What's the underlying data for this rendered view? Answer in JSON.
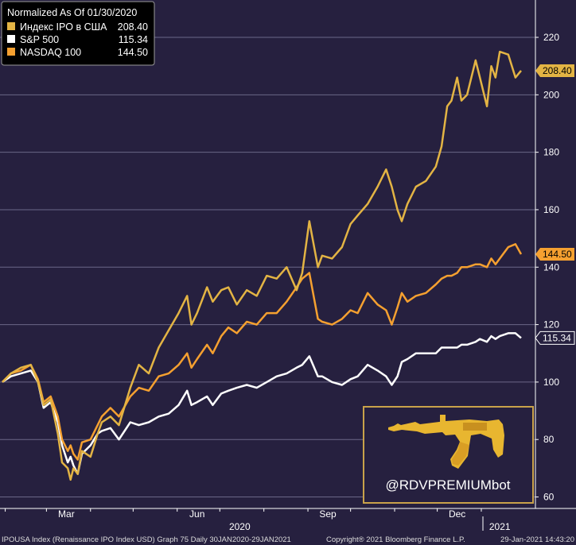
{
  "chart_data": {
    "type": "line",
    "title": "Normalized As Of 01/30/2020",
    "xlabel": "",
    "ylabel": "",
    "ylim": [
      56,
      233
    ],
    "yticks": [
      60,
      80,
      100,
      120,
      140,
      160,
      180,
      200,
      220
    ],
    "grid": true,
    "legend_position": "top-left",
    "x_month_labels": [
      "Mar",
      "Jun",
      "Sep",
      "Dec"
    ],
    "x_year_labels": [
      "2020",
      "2021"
    ],
    "x_range": [
      "2020-01-30",
      "2021-01-29"
    ],
    "series": [
      {
        "name": "Индекс IPO в США",
        "last_value": "208.40",
        "color": "#e3b444",
        "points": [
          [
            "2020-01-30",
            100
          ],
          [
            "2020-02-05",
            103
          ],
          [
            "2020-02-12",
            105
          ],
          [
            "2020-02-19",
            106
          ],
          [
            "2020-02-24",
            100
          ],
          [
            "2020-02-28",
            92
          ],
          [
            "2020-03-04",
            94
          ],
          [
            "2020-03-09",
            82
          ],
          [
            "2020-03-12",
            72
          ],
          [
            "2020-03-16",
            70
          ],
          [
            "2020-03-18",
            66
          ],
          [
            "2020-03-20",
            70
          ],
          [
            "2020-03-23",
            68
          ],
          [
            "2020-03-26",
            76
          ],
          [
            "2020-04-01",
            74
          ],
          [
            "2020-04-06",
            82
          ],
          [
            "2020-04-09",
            86
          ],
          [
            "2020-04-15",
            88
          ],
          [
            "2020-04-21",
            85
          ],
          [
            "2020-04-29",
            98
          ],
          [
            "2020-05-05",
            106
          ],
          [
            "2020-05-12",
            103
          ],
          [
            "2020-05-19",
            112
          ],
          [
            "2020-05-26",
            118
          ],
          [
            "2020-06-02",
            124
          ],
          [
            "2020-06-08",
            130
          ],
          [
            "2020-06-11",
            120
          ],
          [
            "2020-06-15",
            124
          ],
          [
            "2020-06-22",
            133
          ],
          [
            "2020-06-26",
            128
          ],
          [
            "2020-07-02",
            132
          ],
          [
            "2020-07-07",
            133
          ],
          [
            "2020-07-13",
            127
          ],
          [
            "2020-07-20",
            132
          ],
          [
            "2020-07-27",
            130
          ],
          [
            "2020-08-03",
            137
          ],
          [
            "2020-08-10",
            136
          ],
          [
            "2020-08-17",
            140
          ],
          [
            "2020-08-24",
            132
          ],
          [
            "2020-08-28",
            138
          ],
          [
            "2020-09-02",
            156
          ],
          [
            "2020-09-08",
            140
          ],
          [
            "2020-09-11",
            144
          ],
          [
            "2020-09-18",
            143
          ],
          [
            "2020-09-25",
            147
          ],
          [
            "2020-10-01",
            155
          ],
          [
            "2020-10-06",
            158
          ],
          [
            "2020-10-13",
            162
          ],
          [
            "2020-10-20",
            168
          ],
          [
            "2020-10-26",
            174
          ],
          [
            "2020-10-30",
            168
          ],
          [
            "2020-11-03",
            160
          ],
          [
            "2020-11-06",
            156
          ],
          [
            "2020-11-10",
            162
          ],
          [
            "2020-11-16",
            168
          ],
          [
            "2020-11-23",
            170
          ],
          [
            "2020-11-30",
            175
          ],
          [
            "2020-12-04",
            182
          ],
          [
            "2020-12-08",
            196
          ],
          [
            "2020-12-11",
            198
          ],
          [
            "2020-12-15",
            206
          ],
          [
            "2020-12-18",
            198
          ],
          [
            "2020-12-22",
            200
          ],
          [
            "2020-12-28",
            212
          ],
          [
            "2020-12-31",
            206
          ],
          [
            "2021-01-05",
            196
          ],
          [
            "2021-01-08",
            210
          ],
          [
            "2021-01-11",
            206
          ],
          [
            "2021-01-14",
            215
          ],
          [
            "2021-01-20",
            214
          ],
          [
            "2021-01-25",
            206
          ],
          [
            "2021-01-29",
            208.4
          ]
        ]
      },
      {
        "name": "S&P 500",
        "last_value": "115.34",
        "color": "#ffffff",
        "points": [
          [
            "2020-01-30",
            100
          ],
          [
            "2020-02-05",
            102
          ],
          [
            "2020-02-12",
            103
          ],
          [
            "2020-02-19",
            104
          ],
          [
            "2020-02-24",
            100
          ],
          [
            "2020-02-28",
            91
          ],
          [
            "2020-03-04",
            93
          ],
          [
            "2020-03-09",
            86
          ],
          [
            "2020-03-12",
            78
          ],
          [
            "2020-03-16",
            72
          ],
          [
            "2020-03-18",
            74
          ],
          [
            "2020-03-20",
            71
          ],
          [
            "2020-03-23",
            68
          ],
          [
            "2020-03-26",
            75
          ],
          [
            "2020-04-01",
            78
          ],
          [
            "2020-04-06",
            82
          ],
          [
            "2020-04-09",
            83
          ],
          [
            "2020-04-15",
            84
          ],
          [
            "2020-04-21",
            80
          ],
          [
            "2020-04-29",
            86
          ],
          [
            "2020-05-05",
            85
          ],
          [
            "2020-05-12",
            86
          ],
          [
            "2020-05-19",
            88
          ],
          [
            "2020-05-26",
            89
          ],
          [
            "2020-06-02",
            92
          ],
          [
            "2020-06-08",
            97
          ],
          [
            "2020-06-11",
            92
          ],
          [
            "2020-06-15",
            93
          ],
          [
            "2020-06-22",
            95
          ],
          [
            "2020-06-26",
            92
          ],
          [
            "2020-07-02",
            96
          ],
          [
            "2020-07-07",
            97
          ],
          [
            "2020-07-13",
            98
          ],
          [
            "2020-07-20",
            99
          ],
          [
            "2020-07-27",
            98
          ],
          [
            "2020-08-03",
            100
          ],
          [
            "2020-08-10",
            102
          ],
          [
            "2020-08-17",
            103
          ],
          [
            "2020-08-24",
            105
          ],
          [
            "2020-08-28",
            106
          ],
          [
            "2020-09-02",
            109
          ],
          [
            "2020-09-08",
            102
          ],
          [
            "2020-09-11",
            102
          ],
          [
            "2020-09-18",
            100
          ],
          [
            "2020-09-25",
            99
          ],
          [
            "2020-10-01",
            101
          ],
          [
            "2020-10-06",
            102
          ],
          [
            "2020-10-13",
            106
          ],
          [
            "2020-10-20",
            104
          ],
          [
            "2020-10-26",
            102
          ],
          [
            "2020-10-30",
            99
          ],
          [
            "2020-11-03",
            102
          ],
          [
            "2020-11-06",
            107
          ],
          [
            "2020-11-10",
            108
          ],
          [
            "2020-11-16",
            110
          ],
          [
            "2020-11-23",
            110
          ],
          [
            "2020-11-30",
            110
          ],
          [
            "2020-12-04",
            112
          ],
          [
            "2020-12-08",
            112
          ],
          [
            "2020-12-11",
            112
          ],
          [
            "2020-12-15",
            112
          ],
          [
            "2020-12-18",
            113
          ],
          [
            "2020-12-22",
            113
          ],
          [
            "2020-12-28",
            114
          ],
          [
            "2020-12-31",
            115
          ],
          [
            "2021-01-05",
            114
          ],
          [
            "2021-01-08",
            116
          ],
          [
            "2021-01-11",
            115
          ],
          [
            "2021-01-14",
            116
          ],
          [
            "2021-01-20",
            117
          ],
          [
            "2021-01-25",
            117
          ],
          [
            "2021-01-29",
            115.34
          ]
        ]
      },
      {
        "name": "NASDAQ 100",
        "last_value": "144.50",
        "color": "#f5a030",
        "points": [
          [
            "2020-01-30",
            100
          ],
          [
            "2020-02-05",
            103
          ],
          [
            "2020-02-12",
            104
          ],
          [
            "2020-02-19",
            106
          ],
          [
            "2020-02-24",
            101
          ],
          [
            "2020-02-28",
            93
          ],
          [
            "2020-03-04",
            95
          ],
          [
            "2020-03-09",
            88
          ],
          [
            "2020-03-12",
            80
          ],
          [
            "2020-03-16",
            76
          ],
          [
            "2020-03-18",
            78
          ],
          [
            "2020-03-20",
            75
          ],
          [
            "2020-03-23",
            73
          ],
          [
            "2020-03-26",
            79
          ],
          [
            "2020-04-01",
            80
          ],
          [
            "2020-04-06",
            85
          ],
          [
            "2020-04-09",
            88
          ],
          [
            "2020-04-15",
            91
          ],
          [
            "2020-04-21",
            88
          ],
          [
            "2020-04-29",
            95
          ],
          [
            "2020-05-05",
            98
          ],
          [
            "2020-05-12",
            97
          ],
          [
            "2020-05-19",
            102
          ],
          [
            "2020-05-26",
            103
          ],
          [
            "2020-06-02",
            106
          ],
          [
            "2020-06-08",
            110
          ],
          [
            "2020-06-11",
            105
          ],
          [
            "2020-06-15",
            108
          ],
          [
            "2020-06-22",
            113
          ],
          [
            "2020-06-26",
            110
          ],
          [
            "2020-07-02",
            116
          ],
          [
            "2020-07-07",
            119
          ],
          [
            "2020-07-13",
            117
          ],
          [
            "2020-07-20",
            121
          ],
          [
            "2020-07-27",
            120
          ],
          [
            "2020-08-03",
            124
          ],
          [
            "2020-08-10",
            124
          ],
          [
            "2020-08-17",
            128
          ],
          [
            "2020-08-24",
            133
          ],
          [
            "2020-08-28",
            136
          ],
          [
            "2020-09-02",
            138
          ],
          [
            "2020-09-08",
            122
          ],
          [
            "2020-09-11",
            121
          ],
          [
            "2020-09-18",
            120
          ],
          [
            "2020-09-25",
            122
          ],
          [
            "2020-10-01",
            125
          ],
          [
            "2020-10-06",
            124
          ],
          [
            "2020-10-13",
            131
          ],
          [
            "2020-10-20",
            127
          ],
          [
            "2020-10-26",
            125
          ],
          [
            "2020-10-30",
            120
          ],
          [
            "2020-11-03",
            126
          ],
          [
            "2020-11-06",
            131
          ],
          [
            "2020-11-10",
            128
          ],
          [
            "2020-11-16",
            130
          ],
          [
            "2020-11-23",
            131
          ],
          [
            "2020-11-30",
            134
          ],
          [
            "2020-12-04",
            136
          ],
          [
            "2020-12-08",
            137
          ],
          [
            "2020-12-11",
            137
          ],
          [
            "2020-12-15",
            138
          ],
          [
            "2020-12-18",
            140
          ],
          [
            "2020-12-22",
            140
          ],
          [
            "2020-12-28",
            141
          ],
          [
            "2020-12-31",
            141
          ],
          [
            "2021-01-05",
            140
          ],
          [
            "2021-01-08",
            143
          ],
          [
            "2021-01-11",
            141
          ],
          [
            "2021-01-14",
            143
          ],
          [
            "2021-01-20",
            147
          ],
          [
            "2021-01-25",
            148
          ],
          [
            "2021-01-29",
            144.5
          ]
        ]
      }
    ]
  },
  "watermark": {
    "handle": "@RDVPREMIUMbot",
    "logo": "golden-rifle-logo",
    "logo_color": "#e8b630"
  },
  "footer": {
    "left": "IPOUSA Index (Renaissance IPO Index USD) Graph 75  Daily 30JAN2020-29JAN2021",
    "middle": "Copyright® 2021 Bloomberg Finance L.P.",
    "right": "29-Jan-2021 14:43:20"
  },
  "colors": {
    "background": "#26203f",
    "grid": "#6b6788",
    "text": "#ffffff"
  }
}
